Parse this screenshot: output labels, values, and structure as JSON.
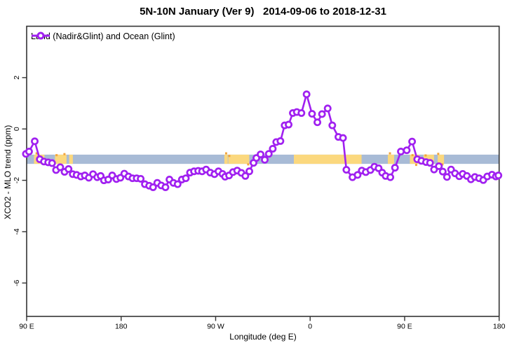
{
  "header": {
    "title": "5N-10N January (Ver 9)   2014-09-06 to 2018-12-31"
  },
  "legend": {
    "label": "Land (Nadir&Glint) and Ocean (Glint)"
  },
  "chart_data": {
    "type": "line",
    "title": "5N-10N January (Ver 9)   2014-09-06 to 2018-12-31",
    "xlabel": "Longitude (deg E)",
    "ylabel": "XCO2 - MLO trend (ppm)",
    "xlim": [
      90,
      540
    ],
    "ylim": [
      -7.3,
      4.0
    ],
    "grid": false,
    "legend_position": "top-left",
    "x_ticks": [
      {
        "value": 90,
        "label": "90 E"
      },
      {
        "value": 180,
        "label": "180"
      },
      {
        "value": 270,
        "label": "90 W"
      },
      {
        "value": 360,
        "label": "0"
      },
      {
        "value": 450,
        "label": "90 E"
      },
      {
        "value": 540,
        "label": "180"
      }
    ],
    "y_ticks": [
      {
        "value": 2,
        "label": "2"
      },
      {
        "value": 0,
        "label": "0"
      },
      {
        "value": -2,
        "label": "-2"
      },
      {
        "value": -4,
        "label": "-4"
      },
      {
        "value": -6,
        "label": "-6"
      }
    ],
    "line_color": "#A020F0",
    "marker": "open-circle",
    "axis_color": "#333333",
    "map_band": {
      "description": "latitude-strip map: ocean blue band with yellow land patches",
      "value_range": [
        -1.36,
        -1.0
      ],
      "ocean_color": "#A8BBD6",
      "land_color": "#FBD87E",
      "speck_color": "#F2A43C",
      "land_patches": [
        [
          97,
          107
        ],
        [
          117,
          128
        ],
        [
          130.5,
          134
        ],
        [
          278.3,
          281.5
        ],
        [
          282,
          302
        ],
        [
          344.5,
          409
        ],
        [
          434,
          440
        ],
        [
          455,
          464
        ],
        [
          468,
          478
        ],
        [
          481.5,
          487.5
        ]
      ],
      "specks": [
        [
          99.5,
          -0.95
        ],
        [
          118.5,
          -1.02
        ],
        [
          122,
          -1.4
        ],
        [
          126,
          -0.98
        ],
        [
          280,
          -0.95
        ],
        [
          283,
          -1.05
        ],
        [
          301,
          -1.38
        ],
        [
          436,
          -0.95
        ],
        [
          457.5,
          -1.02
        ],
        [
          461,
          -1.4
        ],
        [
          470,
          -1.03
        ],
        [
          482,
          -0.97
        ],
        [
          486,
          -1.38
        ]
      ]
    },
    "series": [
      {
        "name": "Land (Nadir&Glint) and Ocean (Glint)",
        "points": [
          [
            89.3,
            -0.97
          ],
          [
            92.3,
            -0.88
          ],
          [
            97.7,
            -0.48
          ],
          [
            102.5,
            -1.18
          ],
          [
            106.5,
            -1.27
          ],
          [
            110.5,
            -1.3
          ],
          [
            114.2,
            -1.33
          ],
          [
            118.0,
            -1.6
          ],
          [
            122.0,
            -1.49
          ],
          [
            126.1,
            -1.67
          ],
          [
            129.9,
            -1.56
          ],
          [
            133.9,
            -1.76
          ],
          [
            137.6,
            -1.79
          ],
          [
            141.6,
            -1.85
          ],
          [
            145.4,
            -1.81
          ],
          [
            149.2,
            -1.9
          ],
          [
            153.2,
            -1.76
          ],
          [
            157.2,
            -1.88
          ],
          [
            160.5,
            -1.83
          ],
          [
            163.6,
            -2.0
          ],
          [
            167.7,
            -1.97
          ],
          [
            171.5,
            -1.81
          ],
          [
            175.5,
            -1.95
          ],
          [
            179.3,
            -1.9
          ],
          [
            183.0,
            -1.74
          ],
          [
            187.0,
            -1.85
          ],
          [
            190.8,
            -1.92
          ],
          [
            194.8,
            -1.92
          ],
          [
            198.6,
            -1.94
          ],
          [
            202.6,
            -2.15
          ],
          [
            206.7,
            -2.21
          ],
          [
            210.4,
            -2.27
          ],
          [
            214.4,
            -2.1
          ],
          [
            218.2,
            -2.2
          ],
          [
            222.2,
            -2.27
          ],
          [
            226.0,
            -1.97
          ],
          [
            229.8,
            -2.1
          ],
          [
            233.8,
            -2.15
          ],
          [
            237.8,
            -1.97
          ],
          [
            241.6,
            -1.92
          ],
          [
            245.6,
            -1.7
          ],
          [
            249.4,
            -1.65
          ],
          [
            253.4,
            -1.63
          ],
          [
            257.1,
            -1.65
          ],
          [
            260.9,
            -1.58
          ],
          [
            264.9,
            -1.7
          ],
          [
            268.9,
            -1.76
          ],
          [
            272.7,
            -1.65
          ],
          [
            276.5,
            -1.75
          ],
          [
            279.0,
            -1.86
          ],
          [
            282.8,
            -1.81
          ],
          [
            286.5,
            -1.68
          ],
          [
            290.5,
            -1.62
          ],
          [
            294.5,
            -1.71
          ],
          [
            298.3,
            -1.83
          ],
          [
            302.1,
            -1.65
          ],
          [
            306.1,
            -1.32
          ],
          [
            308.8,
            -1.13
          ],
          [
            312.8,
            -0.99
          ],
          [
            316.8,
            -1.2
          ],
          [
            320.6,
            -0.97
          ],
          [
            324.4,
            -0.77
          ],
          [
            327.7,
            -0.51
          ],
          [
            331.7,
            -0.47
          ],
          [
            335.7,
            0.14
          ],
          [
            339.5,
            0.17
          ],
          [
            343.5,
            0.62
          ],
          [
            347.3,
            0.66
          ],
          [
            351.7,
            0.62
          ],
          [
            356.6,
            1.35
          ],
          [
            361.8,
            0.59
          ],
          [
            366.9,
            0.26
          ],
          [
            371.3,
            0.58
          ],
          [
            376.7,
            0.8
          ],
          [
            381.1,
            0.14
          ],
          [
            386.9,
            -0.31
          ],
          [
            391.3,
            -0.35
          ],
          [
            394.5,
            -1.59
          ],
          [
            400.3,
            -1.88
          ],
          [
            405.2,
            -1.79
          ],
          [
            409.2,
            -1.62
          ],
          [
            413.0,
            -1.68
          ],
          [
            417.4,
            -1.6
          ],
          [
            421.2,
            -1.47
          ],
          [
            425.2,
            -1.53
          ],
          [
            428.6,
            -1.7
          ],
          [
            431.9,
            -1.83
          ],
          [
            436.4,
            -1.88
          ],
          [
            440.8,
            -1.51
          ],
          [
            446.4,
            -0.88
          ],
          [
            452.0,
            -0.83
          ],
          [
            457.1,
            -0.49
          ],
          [
            462.0,
            -1.18
          ],
          [
            466.0,
            -1.24
          ],
          [
            470.4,
            -1.29
          ],
          [
            474.2,
            -1.32
          ],
          [
            478.0,
            -1.58
          ],
          [
            482.6,
            -1.45
          ],
          [
            486.3,
            -1.66
          ],
          [
            490.3,
            -1.87
          ],
          [
            494.2,
            -1.58
          ],
          [
            498.0,
            -1.73
          ],
          [
            502.0,
            -1.84
          ],
          [
            505.3,
            -1.75
          ],
          [
            509.3,
            -1.83
          ],
          [
            513.1,
            -1.96
          ],
          [
            516.9,
            -1.87
          ],
          [
            520.9,
            -1.92
          ],
          [
            524.9,
            -1.99
          ],
          [
            528.7,
            -1.85
          ],
          [
            533.2,
            -1.78
          ],
          [
            536.9,
            -1.85
          ],
          [
            539.3,
            -1.81
          ]
        ]
      }
    ]
  }
}
